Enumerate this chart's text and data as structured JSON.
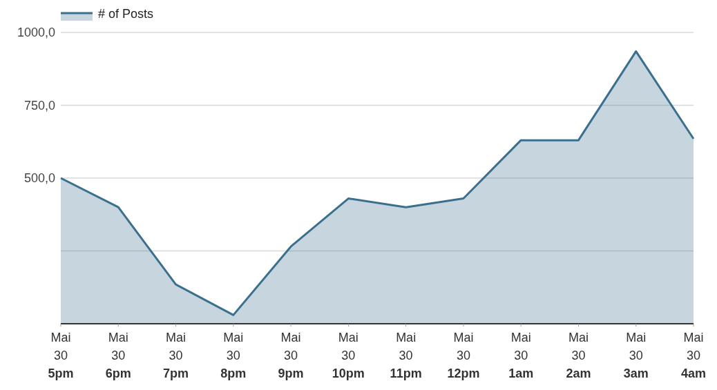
{
  "chart_data": {
    "type": "area",
    "categories": [
      "Mai\n30\n5pm",
      "Mai\n30\n6pm",
      "Mai\n30\n7pm",
      "Mai\n30\n8pm",
      "Mai\n30\n9pm",
      "Mai\n30\n10pm",
      "Mai\n30\n11pm",
      "Mai\n30\n12pm",
      "Mai\n30\n1am",
      "Mai\n30\n2am",
      "Mai\n30\n3am",
      "Mai\n30\n4am"
    ],
    "series": [
      {
        "name": "# of Posts",
        "color": "#3b6f8e",
        "values": [
          500,
          400,
          135,
          30,
          265,
          430,
          400,
          430,
          630,
          630,
          935,
          635
        ]
      }
    ],
    "ylim": [
      0,
      1000
    ],
    "yticks": [
      {
        "value": 0,
        "label": null
      },
      {
        "value": 250,
        "label": null
      },
      {
        "value": 500,
        "label": "500,0"
      },
      {
        "value": 750,
        "label": "750,0"
      },
      {
        "value": 1000,
        "label": "1000,0"
      }
    ],
    "grid": "y",
    "legend": "top left"
  }
}
